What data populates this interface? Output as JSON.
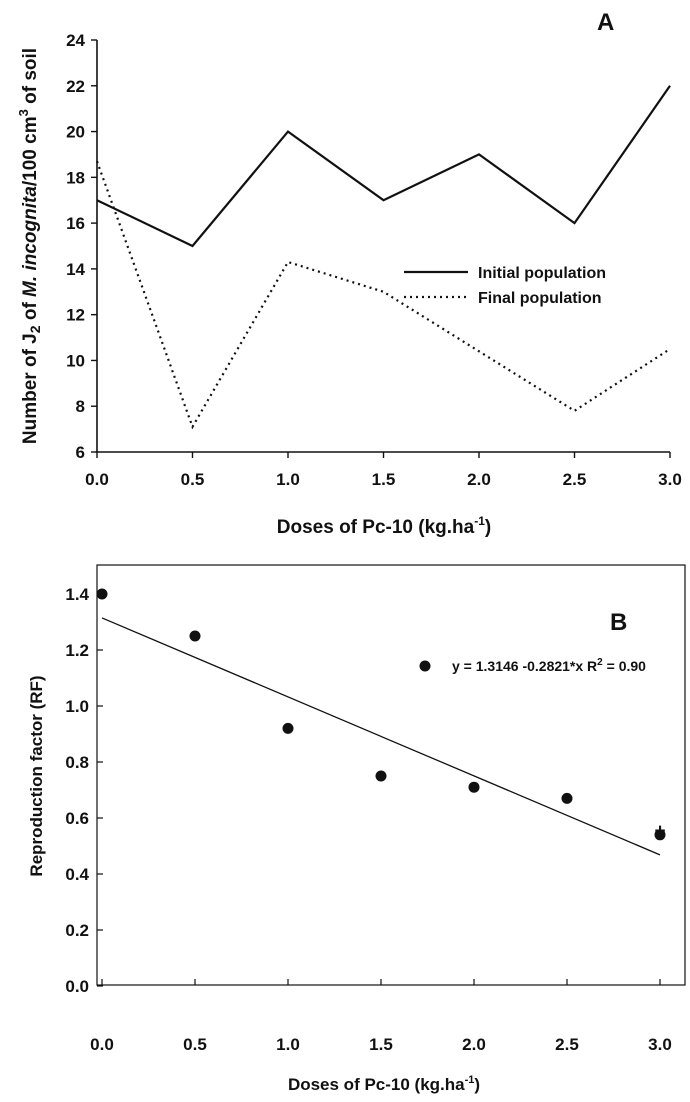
{
  "chart_data": [
    {
      "panel": "A",
      "type": "line",
      "x": [
        0.0,
        0.5,
        1.0,
        1.5,
        2.0,
        2.5,
        3.0
      ],
      "series": [
        {
          "name": "Initial population",
          "style": "solid",
          "values": [
            17,
            15,
            20,
            17,
            19,
            16,
            22
          ]
        },
        {
          "name": "Final population",
          "style": "dotted",
          "values": [
            18.7,
            7.1,
            14.3,
            13.0,
            10.4,
            7.8,
            10.5
          ]
        }
      ],
      "xlabel": "Doses of Pc-10 (kg.ha",
      "xlabel_sup": "-1",
      "xlabel_end": ")",
      "ylabel": {
        "a": "Number of J",
        "b": "2",
        "c": " of ",
        "d": "M. incognita",
        "e": "/100 cm",
        "f": "3",
        "g": " of soil"
      },
      "xlim": [
        0,
        3
      ],
      "ylim": [
        6,
        24
      ],
      "xticks": [
        "0.0",
        "0.5",
        "1.0",
        "1.5",
        "2.0",
        "2.5",
        "3.0"
      ],
      "yticks": [
        "6",
        "8",
        "10",
        "12",
        "14",
        "16",
        "18",
        "20",
        "22",
        "24"
      ],
      "legend_position": "right-middle",
      "grid": false
    },
    {
      "panel": "B",
      "type": "scatter",
      "x": [
        0.0,
        0.5,
        1.0,
        1.5,
        2.0,
        2.5,
        3.0
      ],
      "values": [
        1.4,
        1.25,
        0.92,
        0.75,
        0.71,
        0.67,
        0.54
      ],
      "regression": {
        "intercept": 1.3146,
        "slope": -0.2821
      },
      "equation": {
        "main": "y = 1.3146 -0.2821*x  R",
        "sup": "2",
        "tail": " = 0.90"
      },
      "annotation": "+",
      "xlabel": "Doses of Pc-10 (kg.ha",
      "xlabel_sup": "-1",
      "xlabel_end": ")",
      "ylabel": "Reproduction factor (RF)",
      "xlim": [
        0,
        3
      ],
      "ylim": [
        0,
        1.4
      ],
      "xticks": [
        "0.0",
        "0.5",
        "1.0",
        "1.5",
        "2.0",
        "2.5",
        "3.0"
      ],
      "yticks": [
        "0.0",
        "0.2",
        "0.4",
        "0.6",
        "0.8",
        "1.0",
        "1.2",
        "1.4"
      ],
      "grid": false
    }
  ]
}
